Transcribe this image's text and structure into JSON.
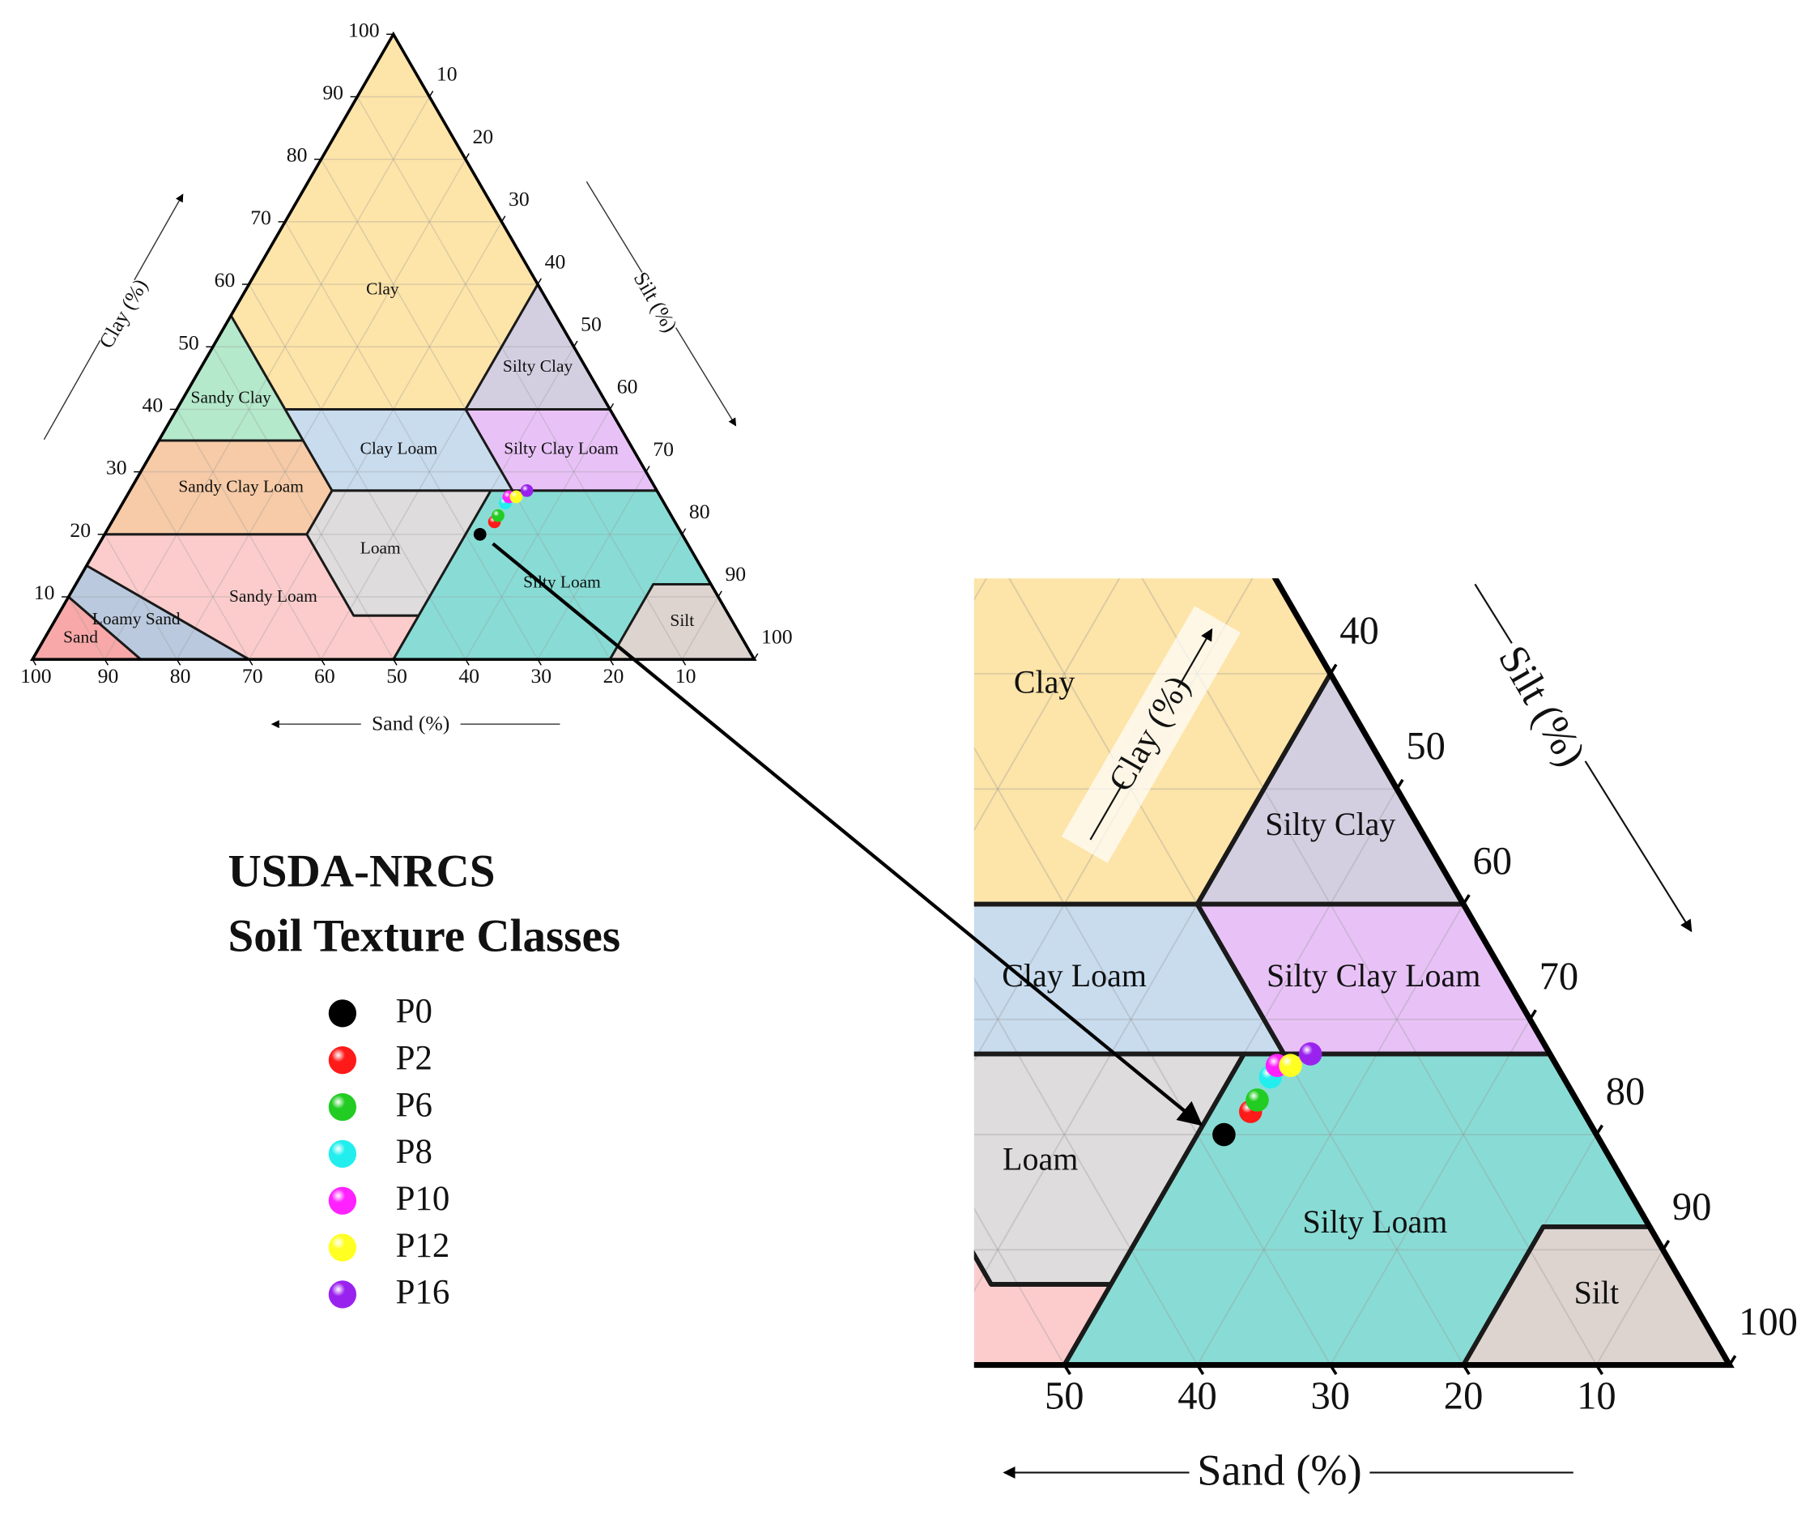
{
  "chart_data": {
    "type": "ternary",
    "title": [
      "USDA-NRCS",
      "Soil Texture Classes"
    ],
    "axes": {
      "sand": "Sand (%)",
      "silt": "Silt (%)",
      "clay": "Clay (%)"
    },
    "sand_ticks": [
      100,
      90,
      80,
      70,
      60,
      50,
      40,
      30,
      20,
      10
    ],
    "silt_ticks": [
      10,
      20,
      30,
      40,
      50,
      60,
      70,
      80,
      90,
      100
    ],
    "clay_ticks": [
      10,
      20,
      30,
      40,
      50,
      60,
      70,
      80,
      90,
      100
    ],
    "zoom_sand_ticks": [
      50,
      40,
      30,
      20,
      10
    ],
    "zoom_silt_ticks": [
      40,
      50,
      60,
      70,
      80,
      90,
      100
    ],
    "grid": true,
    "regions": [
      {
        "name": "Clay",
        "color": "#fde4a8",
        "vertices": [
          [
            45,
            40
          ],
          [
            20,
            40
          ],
          [
            0,
            60
          ],
          [
            0,
            100
          ],
          [
            45,
            55
          ]
        ]
      },
      {
        "name": "Silty Clay",
        "color": "#d3cfe1",
        "vertices": [
          [
            20,
            40
          ],
          [
            0,
            40
          ],
          [
            0,
            60
          ]
        ]
      },
      {
        "name": "Sandy Clay",
        "color": "#b4e9cb",
        "vertices": [
          [
            65,
            35
          ],
          [
            45,
            35
          ],
          [
            45,
            55
          ]
        ]
      },
      {
        "name": "Clay Loam",
        "color": "#c8dcee",
        "vertices": [
          [
            45,
            27
          ],
          [
            20,
            27
          ],
          [
            20,
            40
          ],
          [
            45,
            40
          ]
        ]
      },
      {
        "name": "Silty Clay Loam",
        "color": "#e8c2f7",
        "vertices": [
          [
            20,
            27
          ],
          [
            0,
            27
          ],
          [
            0,
            40
          ],
          [
            20,
            40
          ]
        ]
      },
      {
        "name": "Sandy Clay Loam",
        "color": "#f7cba7",
        "vertices": [
          [
            80,
            20
          ],
          [
            52,
            20
          ],
          [
            45,
            27
          ],
          [
            45,
            35
          ],
          [
            65,
            35
          ]
        ]
      },
      {
        "name": "Loam",
        "color": "#dedcdc",
        "vertices": [
          [
            43,
            7
          ],
          [
            52,
            7
          ],
          [
            52,
            20
          ],
          [
            45,
            27
          ],
          [
            23,
            27
          ]
        ]
      },
      {
        "name": "Silty Loam",
        "color": "#88dcd5",
        "vertices": [
          [
            50,
            0
          ],
          [
            20,
            0
          ],
          [
            8,
            12
          ],
          [
            0,
            12
          ],
          [
            0,
            27
          ],
          [
            23,
            27
          ],
          [
            43,
            7
          ]
        ]
      },
      {
        "name": "Sandy Loam",
        "color": "#fccccc",
        "vertices": [
          [
            85,
            15
          ],
          [
            70,
            0
          ],
          [
            50,
            0
          ],
          [
            43,
            7
          ],
          [
            52,
            7
          ],
          [
            52,
            20
          ],
          [
            80,
            20
          ]
        ]
      },
      {
        "name": "Loamy Sand",
        "color": "#bac9dd",
        "vertices": [
          [
            85,
            0
          ],
          [
            70,
            0
          ],
          [
            85,
            15
          ],
          [
            90,
            10
          ]
        ]
      },
      {
        "name": "Sand",
        "color": "#f8a8a8",
        "vertices": [
          [
            100,
            0
          ],
          [
            85,
            0
          ],
          [
            90,
            10
          ]
        ]
      },
      {
        "name": "Silt",
        "color": "#ddd3cf",
        "vertices": [
          [
            20,
            0
          ],
          [
            0,
            0
          ],
          [
            0,
            12
          ],
          [
            8,
            12
          ]
        ]
      }
    ],
    "series": [
      {
        "name": "P0",
        "color": "#000000",
        "sand": 28,
        "silt": 52,
        "clay": 20
      },
      {
        "name": "P2",
        "color": "#ff1a1a",
        "sand": 25,
        "silt": 53,
        "clay": 22
      },
      {
        "name": "P6",
        "color": "#22cc22",
        "sand": 24,
        "silt": 53,
        "clay": 23
      },
      {
        "name": "P8",
        "color": "#22eeee",
        "sand": 22,
        "silt": 53,
        "clay": 25
      },
      {
        "name": "P10",
        "color": "#ff22ff",
        "sand": 21,
        "silt": 53,
        "clay": 26
      },
      {
        "name": "P12",
        "color": "#ffff22",
        "sand": 20,
        "silt": 54,
        "clay": 26
      },
      {
        "name": "P16",
        "color": "#9a22ee",
        "sand": 18,
        "silt": 55,
        "clay": 27
      }
    ]
  }
}
